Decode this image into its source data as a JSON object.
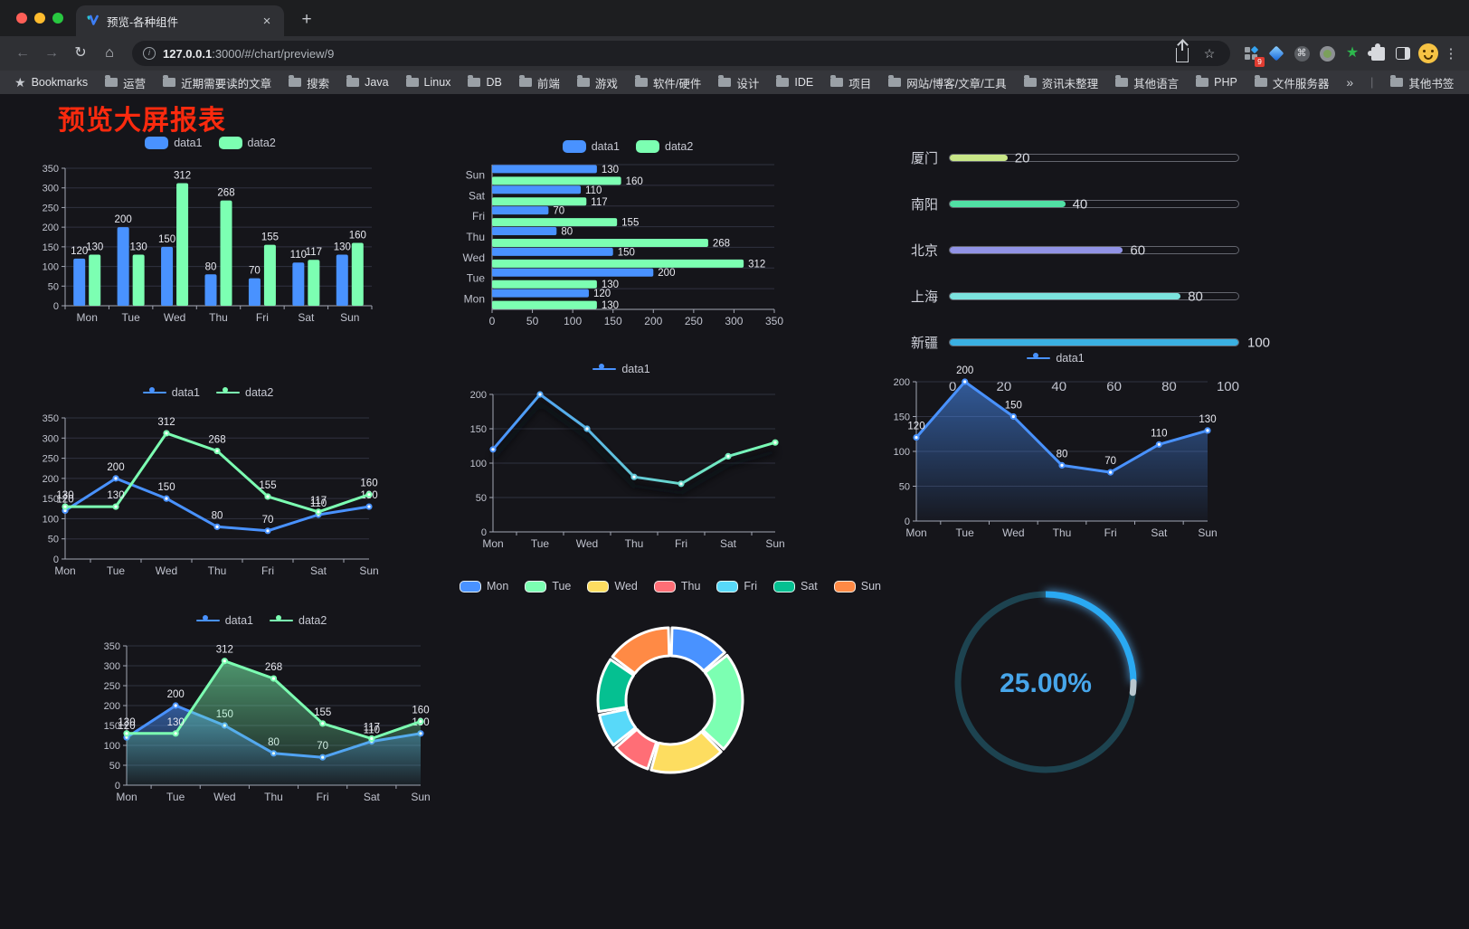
{
  "browser": {
    "tab_title": "预览-各种组件",
    "url_host": "127.0.0.1",
    "url_rest": ":3000/#/chart/preview/9",
    "extension_badge": "9",
    "bookmarks_root_label": "Bookmarks",
    "bookmarks": [
      "运营",
      "近期需要读的文章",
      "搜索",
      "Java",
      "Linux",
      "DB",
      "前端",
      "游戏",
      "软件/硬件",
      "设计",
      "IDE",
      "项目",
      "网站/博客/文章/工具",
      "资讯未整理",
      "其他语言",
      "PHP",
      "文件服务器"
    ],
    "other_bookmarks_label": "其他书签",
    "glyphs": {
      "close": "×",
      "new_tab": "+",
      "back": "←",
      "forward": "→",
      "reload": "↻",
      "home": "⌂",
      "star": "☆",
      "bookmarks_star": "★",
      "overflow": "»",
      "menu": "⋮",
      "command": "⌘",
      "info": "i"
    },
    "traffic_lights": {
      "close": "#ff5f57",
      "minimize": "#febc2e",
      "maximize": "#28c840"
    }
  },
  "page": {
    "title": "预览大屏报表",
    "title_color": "#fa2a0e",
    "bg": "#15151a"
  },
  "chart_data": [
    {
      "id": "grouped-bar",
      "type": "bar",
      "categories": [
        "Mon",
        "Tue",
        "Wed",
        "Thu",
        "Fri",
        "Sat",
        "Sun"
      ],
      "series": [
        {
          "name": "data1",
          "color": "#4992ff",
          "values": [
            120,
            200,
            150,
            80,
            70,
            110,
            130
          ]
        },
        {
          "name": "data2",
          "color": "#7cffb2",
          "values": [
            130,
            130,
            312,
            268,
            155,
            117,
            160
          ]
        }
      ],
      "ylim": [
        0,
        350
      ],
      "yticks": [
        0,
        50,
        100,
        150,
        200,
        250,
        300,
        350
      ],
      "legend_position": "top",
      "labels": true,
      "grid": true
    },
    {
      "id": "horizontal-bar",
      "type": "hbar",
      "categories": [
        "Mon",
        "Tue",
        "Wed",
        "Thu",
        "Fri",
        "Sat",
        "Sun"
      ],
      "series": [
        {
          "name": "data1",
          "color": "#4992ff",
          "values": [
            120,
            200,
            150,
            80,
            70,
            110,
            130
          ]
        },
        {
          "name": "data2",
          "color": "#7cffb2",
          "values": [
            130,
            130,
            312,
            268,
            155,
            117,
            160
          ]
        }
      ],
      "xlim": [
        0,
        350
      ],
      "xticks": [
        0,
        50,
        100,
        150,
        200,
        250,
        300,
        350
      ],
      "legend_position": "top",
      "labels": true,
      "grid": true
    },
    {
      "id": "progress-bars",
      "type": "progress",
      "max": 100,
      "xticks": [
        0,
        20,
        40,
        60,
        80,
        100
      ],
      "items": [
        {
          "label": "厦门",
          "value": 20,
          "color": "#c9e788"
        },
        {
          "label": "南阳",
          "value": 40,
          "color": "#50e0a4"
        },
        {
          "label": "北京",
          "value": 60,
          "color": "#9193e6"
        },
        {
          "label": "上海",
          "value": 80,
          "color": "#7ce3de"
        },
        {
          "label": "新疆",
          "value": 100,
          "color": "#3ab0e2"
        }
      ]
    },
    {
      "id": "dual-line",
      "type": "line",
      "categories": [
        "Mon",
        "Tue",
        "Wed",
        "Thu",
        "Fri",
        "Sat",
        "Sun"
      ],
      "series": [
        {
          "name": "data1",
          "color": "#4992ff",
          "values": [
            120,
            200,
            150,
            80,
            70,
            110,
            130
          ]
        },
        {
          "name": "data2",
          "color": "#7cffb2",
          "values": [
            130,
            130,
            312,
            268,
            155,
            117,
            160
          ]
        }
      ],
      "ylim": [
        0,
        350
      ],
      "yticks": [
        0,
        50,
        100,
        150,
        200,
        250,
        300,
        350
      ],
      "legend_position": "top",
      "labels": true,
      "markers": true,
      "grid": true
    },
    {
      "id": "gradient-line",
      "type": "line",
      "categories": [
        "Mon",
        "Tue",
        "Wed",
        "Thu",
        "Fri",
        "Sat",
        "Sun"
      ],
      "series": [
        {
          "name": "data1",
          "gradient": [
            "#4992ff",
            "#7cffb2"
          ],
          "values": [
            120,
            200,
            150,
            80,
            70,
            110,
            130
          ]
        }
      ],
      "ylim": [
        0,
        200
      ],
      "yticks": [
        0,
        50,
        100,
        150,
        200
      ],
      "legend_position": "top",
      "labels": false,
      "markers": true,
      "shadow": true,
      "grid": true
    },
    {
      "id": "area-line",
      "type": "line",
      "categories": [
        "Mon",
        "Tue",
        "Wed",
        "Thu",
        "Fri",
        "Sat",
        "Sun"
      ],
      "series": [
        {
          "name": "data1",
          "color": "#4992ff",
          "values": [
            120,
            200,
            150,
            80,
            70,
            110,
            130
          ],
          "area": true
        }
      ],
      "ylim": [
        0,
        200
      ],
      "yticks": [
        0,
        50,
        100,
        150,
        200
      ],
      "legend_position": "top",
      "labels": true,
      "markers": true,
      "grid": true
    },
    {
      "id": "dual-area-line",
      "type": "line",
      "categories": [
        "Mon",
        "Tue",
        "Wed",
        "Thu",
        "Fri",
        "Sat",
        "Sun"
      ],
      "series": [
        {
          "name": "data1",
          "color": "#4992ff",
          "values": [
            120,
            200,
            150,
            80,
            70,
            110,
            130
          ],
          "area": true
        },
        {
          "name": "data2",
          "color": "#7cffb2",
          "values": [
            130,
            130,
            312,
            268,
            155,
            117,
            160
          ],
          "area": true
        }
      ],
      "ylim": [
        0,
        350
      ],
      "yticks": [
        0,
        50,
        100,
        150,
        200,
        250,
        300,
        350
      ],
      "legend_position": "top",
      "labels": true,
      "markers": true,
      "grid": true
    },
    {
      "id": "donut",
      "type": "pie",
      "categories": [
        "Mon",
        "Tue",
        "Wed",
        "Thu",
        "Fri",
        "Sat",
        "Sun"
      ],
      "values": [
        120,
        200,
        150,
        80,
        70,
        110,
        130
      ],
      "colors": [
        "#4992ff",
        "#7cffb2",
        "#fddd60",
        "#ff6e76",
        "#58d9f9",
        "#05c091",
        "#ff8a45"
      ],
      "legend_position": "top"
    },
    {
      "id": "gauge-progress",
      "type": "gauge",
      "value": 25,
      "label": "25.00%",
      "color": "#2aa9f2",
      "track_color": "#1d4350",
      "text_color": "#47a6ea"
    }
  ]
}
